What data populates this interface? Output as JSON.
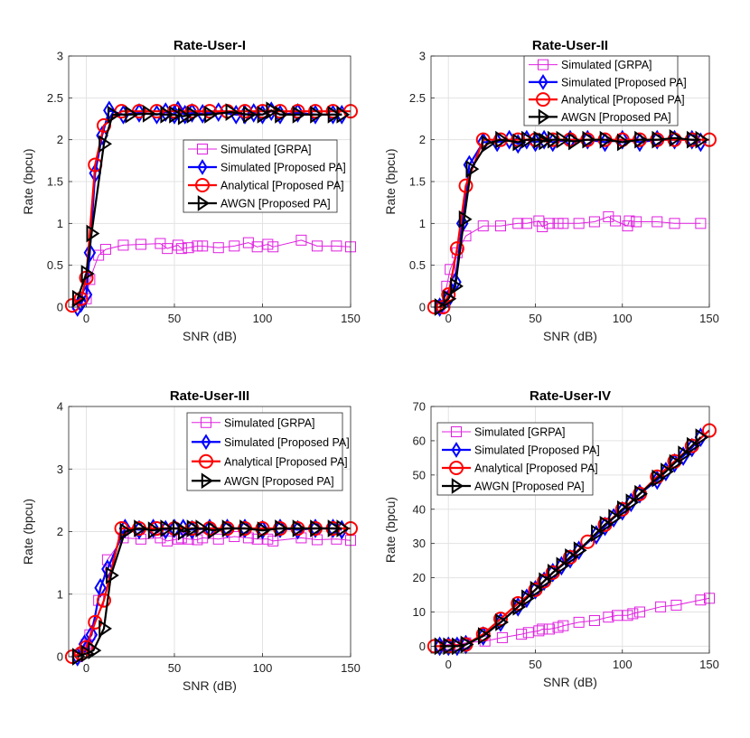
{
  "figure": {
    "legend_labels": [
      "Simulated [GRPA]",
      "Simulated [Proposed PA]",
      "Analytical [Proposed PA]",
      "AWGN [Proposed PA]"
    ],
    "colors": {
      "grpa": "#e020e0",
      "sim": "#0000ff",
      "ana": "#ff0000",
      "awgn": "#000000"
    },
    "marker_names": [
      "square-marker",
      "diamond-marker",
      "circle-marker",
      "right-triangle-marker"
    ]
  },
  "chart_data": [
    {
      "type": "line",
      "title": "Rate-User-I",
      "xlabel": "SNR (dB)",
      "ylabel": "Rate (bpcu)",
      "xlim": [
        -10,
        150
      ],
      "ylim": [
        0,
        3
      ],
      "xticks": [
        0,
        50,
        100,
        150
      ],
      "xtick_labels": [
        "0",
        "50",
        "100",
        "150"
      ],
      "yticks": [
        0,
        0.5,
        1,
        1.5,
        2,
        2.5,
        3
      ],
      "ytick_labels": [
        "0",
        "0.5",
        "1",
        "1.5",
        "2",
        "2.5",
        "3"
      ],
      "legend_position": "center-right",
      "series": [
        {
          "name": "Simulated [GRPA]",
          "x": [
            -5,
            0,
            2,
            7,
            11,
            21,
            31,
            42,
            46,
            52,
            54,
            58,
            63,
            66,
            75,
            84,
            92,
            97,
            103,
            106,
            122,
            131,
            142,
            150
          ],
          "y": [
            0.03,
            0.1,
            0.33,
            0.62,
            0.69,
            0.74,
            0.75,
            0.76,
            0.7,
            0.74,
            0.7,
            0.71,
            0.73,
            0.73,
            0.71,
            0.73,
            0.77,
            0.72,
            0.75,
            0.72,
            0.8,
            0.73,
            0.73,
            0.72
          ]
        },
        {
          "name": "Simulated [Proposed PA]",
          "x": [
            -5,
            -3,
            0,
            2,
            5,
            9,
            13,
            21,
            30,
            40,
            45,
            50,
            52,
            56,
            60,
            66,
            75,
            85,
            90,
            95,
            100,
            105,
            110,
            120,
            130,
            140,
            145
          ],
          "y": [
            0.0,
            0.05,
            0.15,
            0.65,
            1.6,
            2.05,
            2.35,
            2.3,
            2.32,
            2.3,
            2.33,
            2.3,
            2.35,
            2.3,
            2.32,
            2.31,
            2.33,
            2.3,
            2.3,
            2.32,
            2.3,
            2.34,
            2.3,
            2.32,
            2.3,
            2.3,
            2.3
          ]
        },
        {
          "name": "Analytical [Proposed PA]",
          "x": [
            -8,
            -3,
            0,
            5,
            10,
            20,
            30,
            40,
            50,
            60,
            70,
            80,
            90,
            100,
            110,
            120,
            130,
            140,
            150
          ],
          "y": [
            0.02,
            0.1,
            0.35,
            1.7,
            2.17,
            2.34,
            2.34,
            2.34,
            2.34,
            2.34,
            2.34,
            2.34,
            2.34,
            2.34,
            2.34,
            2.34,
            2.34,
            2.34,
            2.34
          ]
        },
        {
          "name": "AWGN [Proposed PA]",
          "x": [
            -5,
            0,
            3,
            10,
            15,
            25,
            35,
            45,
            50,
            55,
            60,
            70,
            82,
            92,
            100,
            105,
            110,
            120,
            130,
            140,
            145
          ],
          "y": [
            0.1,
            0.4,
            0.88,
            1.95,
            2.3,
            2.3,
            2.31,
            2.3,
            2.3,
            2.28,
            2.3,
            2.3,
            2.33,
            2.3,
            2.3,
            2.35,
            2.3,
            2.3,
            2.3,
            2.3,
            2.3
          ]
        }
      ]
    },
    {
      "type": "line",
      "title": "Rate-User-II",
      "xlabel": "SNR (dB)",
      "ylabel": "Rate (bpcu)",
      "xlim": [
        -10,
        150
      ],
      "ylim": [
        0,
        3
      ],
      "xticks": [
        0,
        50,
        100,
        150
      ],
      "xtick_labels": [
        "0",
        "50",
        "100",
        "150"
      ],
      "yticks": [
        0,
        0.5,
        1,
        1.5,
        2,
        2.5,
        3
      ],
      "ytick_labels": [
        "0",
        "0.5",
        "1",
        "1.5",
        "2",
        "2.5",
        "3"
      ],
      "legend_position": "top-right",
      "series": [
        {
          "name": "Simulated [GRPA]",
          "x": [
            -5,
            -1,
            1,
            5,
            10,
            20,
            30,
            40,
            45,
            52,
            54,
            58,
            63,
            66,
            75,
            84,
            92,
            96,
            103,
            104,
            108,
            120,
            130,
            145
          ],
          "y": [
            0.0,
            0.25,
            0.45,
            0.65,
            0.85,
            0.97,
            0.97,
            1.0,
            1.0,
            1.03,
            0.96,
            1.0,
            1.0,
            1.0,
            1.0,
            1.02,
            1.08,
            1.03,
            0.97,
            1.03,
            1.02,
            1.02,
            1.0,
            1.0
          ]
        },
        {
          "name": "Simulated [Proposed PA]",
          "x": [
            -5,
            0,
            4,
            8,
            12,
            20,
            28,
            35,
            40,
            45,
            50,
            55,
            60,
            70,
            80,
            90,
            100,
            110,
            120,
            130,
            140,
            145
          ],
          "y": [
            0.0,
            0.1,
            0.3,
            1.0,
            1.7,
            1.97,
            1.97,
            2.0,
            1.95,
            2.0,
            1.97,
            2.0,
            1.97,
            2.0,
            2.0,
            1.97,
            2.0,
            1.97,
            2.0,
            2.0,
            2.0,
            1.97
          ]
        },
        {
          "name": "Analytical [Proposed PA]",
          "x": [
            -8,
            -3,
            0,
            5,
            10,
            20,
            30,
            40,
            50,
            60,
            70,
            80,
            90,
            100,
            110,
            120,
            130,
            140,
            150
          ],
          "y": [
            0.0,
            0.0,
            0.15,
            0.7,
            1.45,
            2.0,
            2.0,
            2.0,
            2.0,
            2.0,
            2.0,
            2.0,
            2.0,
            2.0,
            2.0,
            2.0,
            2.0,
            2.0,
            2.0
          ]
        },
        {
          "name": "AWGN [Proposed PA]",
          "x": [
            -5,
            0,
            4,
            9,
            13,
            22,
            30,
            40,
            45,
            52,
            55,
            60,
            65,
            72,
            80,
            90,
            100,
            110,
            120,
            130,
            140,
            145
          ],
          "y": [
            0.0,
            0.1,
            0.25,
            1.05,
            1.65,
            1.95,
            2.0,
            1.97,
            2.0,
            2.0,
            1.98,
            2.0,
            2.0,
            1.98,
            2.0,
            2.0,
            1.97,
            2.0,
            2.0,
            2.02,
            2.0,
            2.0
          ]
        }
      ]
    },
    {
      "type": "line",
      "title": "Rate-User-III",
      "xlabel": "SNR (dB)",
      "ylabel": "Rate (bpcu)",
      "xlim": [
        -10,
        150
      ],
      "ylim": [
        0,
        4
      ],
      "xticks": [
        0,
        50,
        100,
        150
      ],
      "xtick_labels": [
        "0",
        "50",
        "100",
        "150"
      ],
      "yticks": [
        0,
        1,
        2,
        3,
        4
      ],
      "ytick_labels": [
        "0",
        "1",
        "2",
        "3",
        "4"
      ],
      "legend_position": "top-right",
      "series": [
        {
          "name": "Simulated [GRPA]",
          "x": [
            -5,
            0,
            2,
            7,
            12,
            21,
            31,
            42,
            46,
            52,
            54,
            58,
            63,
            66,
            75,
            84,
            92,
            97,
            103,
            106,
            122,
            131,
            142,
            150
          ],
          "y": [
            0.0,
            0.2,
            0.35,
            0.9,
            1.55,
            1.9,
            1.88,
            1.9,
            1.85,
            1.88,
            1.9,
            1.88,
            1.87,
            1.9,
            1.88,
            1.92,
            1.9,
            1.88,
            1.88,
            1.85,
            1.9,
            1.87,
            1.88,
            1.86
          ]
        },
        {
          "name": "Simulated [Proposed PA]",
          "x": [
            -5,
            -1,
            3,
            8,
            12,
            22,
            30,
            38,
            45,
            50,
            55,
            60,
            70,
            80,
            90,
            100,
            110,
            120,
            130,
            140,
            145
          ],
          "y": [
            0.0,
            0.2,
            0.35,
            1.1,
            1.4,
            2.05,
            2.03,
            2.05,
            2.03,
            2.05,
            2.05,
            2.03,
            2.05,
            2.05,
            2.05,
            2.03,
            2.05,
            2.03,
            2.05,
            2.05,
            2.03
          ]
        },
        {
          "name": "Analytical [Proposed PA]",
          "x": [
            -8,
            -3,
            0,
            5,
            10,
            20,
            30,
            40,
            50,
            60,
            70,
            80,
            90,
            100,
            110,
            120,
            130,
            140,
            150
          ],
          "y": [
            0.0,
            0.05,
            0.15,
            0.55,
            0.9,
            2.05,
            2.05,
            2.05,
            2.05,
            2.05,
            2.05,
            2.05,
            2.05,
            2.05,
            2.05,
            2.05,
            2.05,
            2.05,
            2.05
          ]
        },
        {
          "name": "AWGN [Proposed PA]",
          "x": [
            -5,
            0,
            4,
            10,
            14,
            22,
            30,
            38,
            45,
            52,
            55,
            60,
            65,
            72,
            80,
            90,
            100,
            110,
            120,
            130,
            140,
            145
          ],
          "y": [
            0.0,
            0.05,
            0.1,
            0.45,
            1.3,
            2.0,
            2.05,
            2.02,
            2.05,
            2.05,
            2.0,
            2.05,
            2.05,
            2.02,
            2.05,
            2.05,
            2.02,
            2.05,
            2.05,
            2.05,
            2.05,
            2.05
          ]
        }
      ]
    },
    {
      "type": "line",
      "title": "Rate-User-IV",
      "xlabel": "SNR (dB)",
      "ylabel": "Rate (bpcu)",
      "xlim": [
        -10,
        150
      ],
      "ylim": [
        -2,
        70
      ],
      "xticks": [
        0,
        50,
        100,
        150
      ],
      "xtick_labels": [
        "0",
        "50",
        "100",
        "150"
      ],
      "yticks": [
        0,
        10,
        20,
        30,
        40,
        50,
        60,
        70
      ],
      "ytick_labels": [
        "0",
        "10",
        "20",
        "30",
        "40",
        "50",
        "60",
        "70"
      ],
      "legend_position": "top-left",
      "series": [
        {
          "name": "Simulated [GRPA]",
          "x": [
            -5,
            0,
            5,
            10,
            21,
            31,
            42,
            46,
            52,
            54,
            58,
            63,
            66,
            75,
            84,
            92,
            97,
            103,
            106,
            110,
            122,
            131,
            145,
            150
          ],
          "y": [
            0,
            0.5,
            0.5,
            1,
            1.5,
            2.5,
            3.5,
            4,
            4.5,
            5,
            5,
            5.5,
            6,
            7,
            7.5,
            8.5,
            9,
            9,
            9.5,
            10,
            11.5,
            12,
            13.5,
            14
          ]
        },
        {
          "name": "Simulated [Proposed PA]",
          "x": [
            -5,
            0,
            5,
            10,
            20,
            30,
            40,
            45,
            50,
            55,
            60,
            65,
            70,
            75,
            85,
            90,
            95,
            100,
            105,
            110,
            120,
            125,
            130,
            135,
            140,
            145
          ],
          "y": [
            0,
            0,
            0,
            0.5,
            3,
            7,
            11.5,
            14,
            16.5,
            19,
            21.5,
            23.5,
            25.5,
            28,
            32.5,
            35,
            37.5,
            39.5,
            42,
            44.5,
            48.5,
            51,
            53.5,
            55.5,
            58,
            61
          ]
        },
        {
          "name": "Analytical [Proposed PA]",
          "x": [
            -8,
            0,
            10,
            20,
            30,
            40,
            50,
            55,
            60,
            70,
            80,
            90,
            100,
            110,
            120,
            130,
            140,
            150
          ],
          "y": [
            0,
            0,
            0.5,
            3.5,
            8,
            12.5,
            16.5,
            19,
            21.5,
            26,
            30.5,
            35.5,
            40,
            44.5,
            49.5,
            54,
            58.5,
            63
          ]
        },
        {
          "name": "AWGN [Proposed PA]",
          "x": [
            -5,
            0,
            5,
            10,
            20,
            30,
            40,
            45,
            50,
            55,
            60,
            65,
            70,
            75,
            85,
            90,
            95,
            100,
            105,
            110,
            120,
            125,
            130,
            135,
            140,
            145
          ],
          "y": [
            0,
            0,
            0,
            0.5,
            3,
            7,
            11.5,
            14,
            16.5,
            19,
            21.5,
            23.5,
            26,
            28,
            33,
            35.5,
            37.5,
            40,
            42,
            44.5,
            49,
            51,
            53.5,
            56,
            58.5,
            61
          ]
        }
      ]
    }
  ]
}
